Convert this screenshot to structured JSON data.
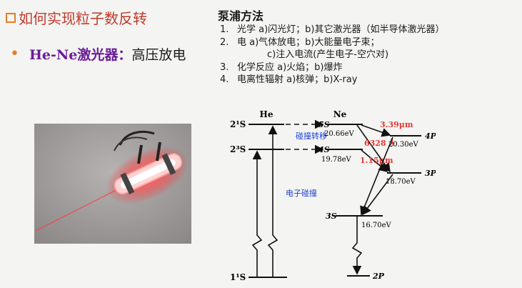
{
  "title": "如何实现粒子数反转",
  "bullet": {
    "label": "He-Ne激光器：",
    "value": "高压放电"
  },
  "pump": {
    "heading": "泵浦方法",
    "items": [
      {
        "num": "1.",
        "text": "光学 a)闪光灯；b)其它激光器（如半导体激光器）"
      },
      {
        "num": "2.",
        "text": "电   a)气体放电；b)大能量电子束；"
      },
      {
        "num": "",
        "text": "c)注入电流(产生电子-空穴对)"
      },
      {
        "num": "3.",
        "text": "化学反应   a)火焰；b)爆炸"
      },
      {
        "num": "4.",
        "text": "电离性辐射  a)核弹；b)X-ray"
      }
    ]
  },
  "diagram": {
    "he": "He",
    "ne": "Ne",
    "he_21s": "2¹S",
    "he_23s": "2³S",
    "he_11s": "1¹S",
    "ne_5s": "5S",
    "ne_4s": "4S",
    "ne_4p": "4P",
    "ne_3p": "3P",
    "ne_3s": "3S",
    "ne_2p": "2P",
    "e_5s": "20.66eV",
    "e_4s": "19.78eV",
    "e_4p": "20.30eV",
    "e_3p": "18.70eV",
    "e_3s": "16.70eV",
    "lambda1": "3.39μm",
    "lambda2": "6328 Å",
    "lambda3": "1.15μm",
    "collision_transfer": "碰撞转移",
    "electron_collision": "电子碰撞",
    "colors": {
      "red": "#e53935",
      "blue": "#1a3fd6"
    }
  }
}
